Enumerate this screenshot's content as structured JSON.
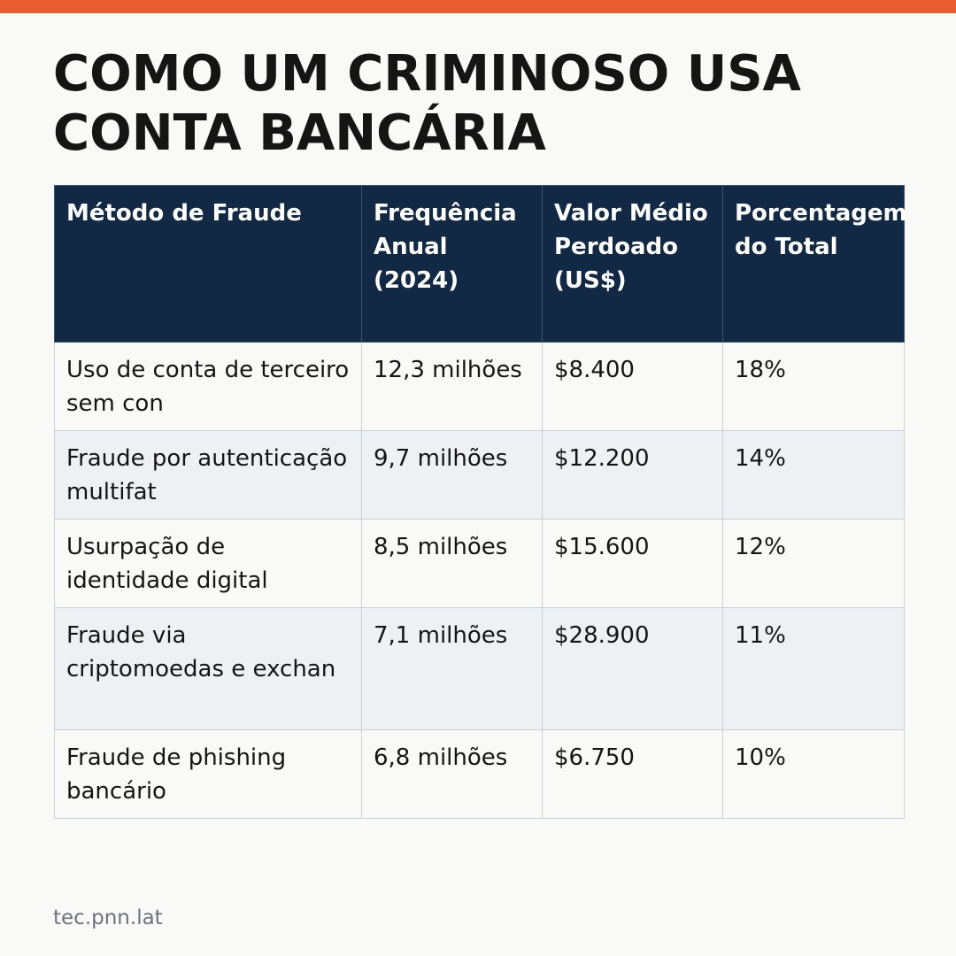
{
  "title": "COMO UM CRIMINOSO USA CONTA BANCÁRIA",
  "table": {
    "headers": [
      "Método de Fraude",
      "Frequência Anual (2024)",
      "Valor Médio Perdoado (US$)",
      "Porcentagem do Total"
    ],
    "rows": [
      [
        "Uso de conta de terceiro sem con",
        "12,3 milhões",
        "$8.400",
        "18%"
      ],
      [
        "Fraude por autenticação multifat",
        "9,7 milhões",
        "$12.200",
        "14%"
      ],
      [
        "Usurpação de identidade digital",
        "8,5 milhões",
        "$15.600",
        "12%"
      ],
      [
        "Fraude via criptomoedas e exchan",
        "7,1 milhões",
        "$28.900",
        "11%"
      ],
      [
        "Fraude de phishing bancário",
        "6,8 milhões",
        "$6.750",
        "10%"
      ]
    ]
  },
  "footer": "tec.pnn.lat",
  "colors": {
    "accent_bar": "#e95c30",
    "header_bg": "#112944",
    "row_alt_bg": "#edf1f4",
    "background": "#f9f9f7"
  }
}
